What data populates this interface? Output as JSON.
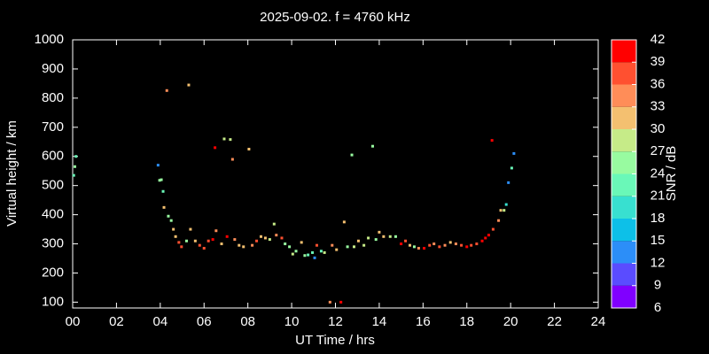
{
  "chart_data": {
    "type": "scatter",
    "title": "2025-09-02. f = 4760 kHz",
    "x_label": "UT Time / hrs",
    "y_label": "Virtual height / km",
    "colorbar_label": "SNR / dB",
    "xlim": [
      0,
      24
    ],
    "xticks": [
      {
        "value": 0,
        "label": "00"
      },
      {
        "value": 2,
        "label": "02"
      },
      {
        "value": 4,
        "label": "04"
      },
      {
        "value": 6,
        "label": "06"
      },
      {
        "value": 8,
        "label": "08"
      },
      10,
      12,
      14,
      16,
      18,
      20,
      22,
      24
    ],
    "ylim": [
      80,
      1000
    ],
    "yticks": [
      100,
      200,
      300,
      400,
      500,
      600,
      700,
      800,
      900,
      1000
    ],
    "clim": [
      6,
      42
    ],
    "cticks": [
      6,
      9,
      12,
      15,
      18,
      21,
      24,
      27,
      30,
      33,
      36,
      39,
      42
    ],
    "colors": [
      "#8000ff",
      "#5a4cff",
      "#2c8ef8",
      "#0dc0e8",
      "#38e0d0",
      "#6af8b8",
      "#98fba0",
      "#c6eb88",
      "#f4c070",
      "#ff8d58",
      "#ff5030",
      "#ff0000"
    ],
    "series": [
      {
        "x": [
          0.05,
          0.1,
          0.15,
          3.9,
          3.97,
          4.05,
          4.13,
          4.17,
          4.3,
          4.37,
          4.5,
          4.6,
          4.7,
          4.85,
          4.97,
          5.2,
          5.3,
          5.38,
          5.6,
          5.8,
          6.0,
          6.2,
          6.4,
          6.5,
          6.55,
          6.8,
          6.92,
          7.05,
          7.2,
          7.3,
          7.4,
          7.6,
          7.8,
          8.05,
          8.2,
          8.4,
          8.6,
          8.8,
          9.0,
          9.2,
          9.3,
          9.55,
          9.7,
          9.9,
          10.05,
          10.2,
          10.45,
          10.6,
          10.75,
          10.95,
          11.05,
          11.15,
          11.35,
          11.5,
          11.75,
          11.85,
          12.05,
          12.25,
          12.4,
          12.55,
          12.75,
          12.85,
          13.05,
          13.3,
          13.5,
          13.7,
          13.85,
          14.0,
          14.2,
          14.5,
          14.75,
          15.0,
          15.2,
          15.4,
          15.6,
          15.8,
          16.05,
          16.3,
          16.5,
          16.75,
          17.0,
          17.25,
          17.5,
          17.75,
          18.0,
          18.2,
          18.45,
          18.7,
          18.85,
          19.0,
          19.15,
          19.2,
          19.45,
          19.55,
          19.7,
          19.8,
          19.9,
          20.05,
          20.15
        ],
        "values": [
          535,
          565,
          600,
          570,
          518,
          520,
          480,
          425,
          826,
          395,
          380,
          350,
          325,
          305,
          290,
          310,
          845,
          350,
          310,
          295,
          285,
          310,
          315,
          630,
          345,
          300,
          660,
          325,
          658,
          590,
          315,
          295,
          290,
          625,
          295,
          310,
          325,
          320,
          315,
          368,
          330,
          320,
          300,
          290,
          265,
          275,
          305,
          260,
          262,
          270,
          252,
          295,
          275,
          270,
          100,
          295,
          280,
          100,
          375,
          290,
          605,
          290,
          310,
          295,
          320,
          635,
          315,
          340,
          325,
          325,
          325,
          300,
          310,
          295,
          290,
          285,
          285,
          295,
          300,
          290,
          295,
          305,
          300,
          295,
          290,
          295,
          300,
          310,
          320,
          330,
          655,
          350,
          380,
          415,
          415,
          435,
          510,
          560,
          610
        ],
        "snr": [
          21,
          24,
          21,
          14,
          24,
          24,
          22,
          30,
          33,
          24,
          24,
          30,
          30,
          36,
          36,
          24,
          30,
          30,
          30,
          36,
          36,
          36,
          39,
          40,
          33,
          30,
          27,
          39,
          27,
          33,
          33,
          30,
          30,
          30,
          33,
          36,
          30,
          30,
          27,
          27,
          33,
          36,
          24,
          24,
          27,
          24,
          30,
          24,
          21,
          21,
          12,
          36,
          21,
          27,
          33,
          33,
          30,
          39,
          30,
          24,
          24,
          27,
          30,
          27,
          27,
          24,
          24,
          30,
          30,
          27,
          24,
          39,
          36,
          30,
          24,
          33,
          39,
          36,
          33,
          36,
          33,
          30,
          33,
          36,
          39,
          36,
          36,
          39,
          39,
          39,
          39,
          36,
          33,
          30,
          27,
          18,
          12,
          21,
          12
        ]
      }
    ]
  }
}
